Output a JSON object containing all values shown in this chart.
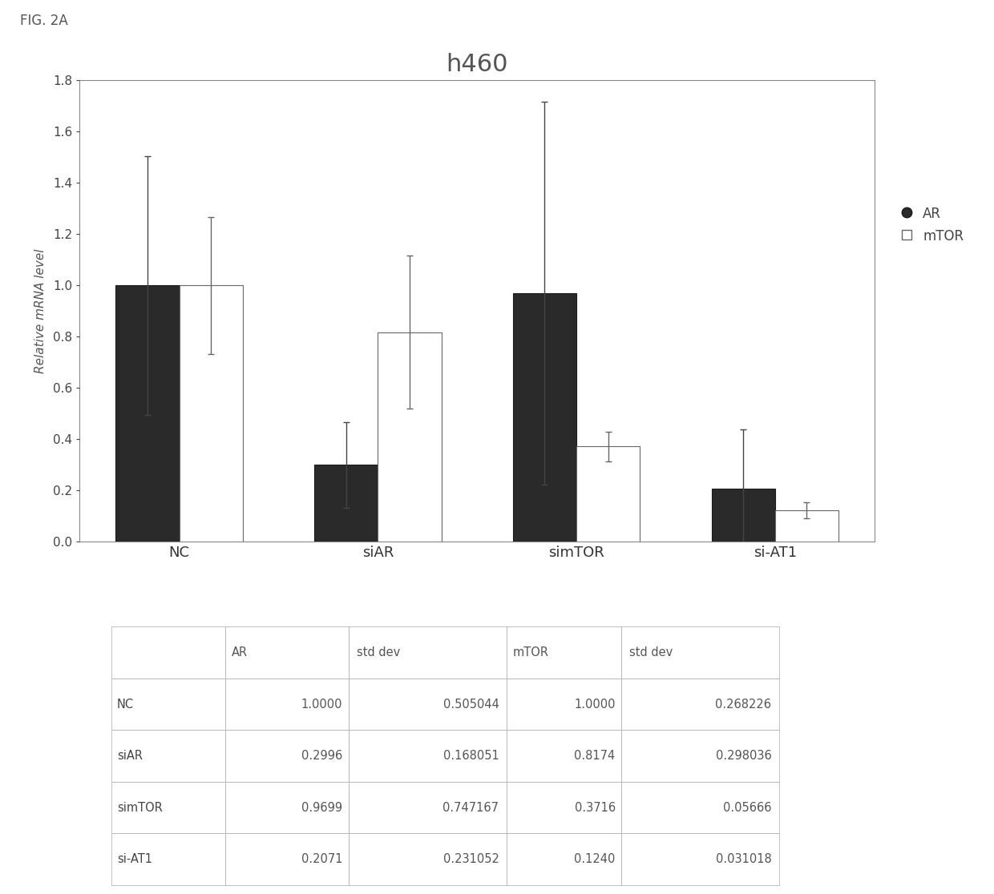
{
  "title": "h460",
  "fig_label": "FIG. 2A",
  "ylabel": "Relative mRNA level",
  "categories": [
    "NC",
    "siAR",
    "simTOR",
    "si-AT1"
  ],
  "AR_values": [
    1.0,
    0.2996,
    0.9699,
    0.2071
  ],
  "AR_std": [
    0.505044,
    0.168051,
    0.747167,
    0.231052
  ],
  "mTOR_values": [
    1.0,
    0.8174,
    0.3716,
    0.124
  ],
  "mTOR_std": [
    0.268226,
    0.298036,
    0.05666,
    0.031018
  ],
  "ylim": [
    0.0,
    1.8
  ],
  "yticks": [
    0.0,
    0.2,
    0.4,
    0.6,
    0.8,
    1.0,
    1.2,
    1.4,
    1.6,
    1.8
  ],
  "bar_width": 0.32,
  "AR_color": "#2a2a2a",
  "mTOR_color": "#ffffff",
  "mTOR_edgecolor": "#666666",
  "AR_edgecolor": "#1a1a1a",
  "background_color": "#ffffff",
  "table_headers": [
    "",
    "AR",
    "std dev",
    "mTOR",
    "std dev"
  ],
  "table_rows": [
    [
      "NC",
      "1.0000",
      "0.505044",
      "1.0000",
      "0.268226"
    ],
    [
      "siAR",
      "0.2996",
      "0.168051",
      "0.8174",
      "0.298036"
    ],
    [
      "simTOR",
      "0.9699",
      "0.747167",
      "0.3716",
      "0.05666"
    ],
    [
      "si-AT1",
      "0.2071",
      "0.231052",
      "0.1240",
      "0.031018"
    ]
  ]
}
